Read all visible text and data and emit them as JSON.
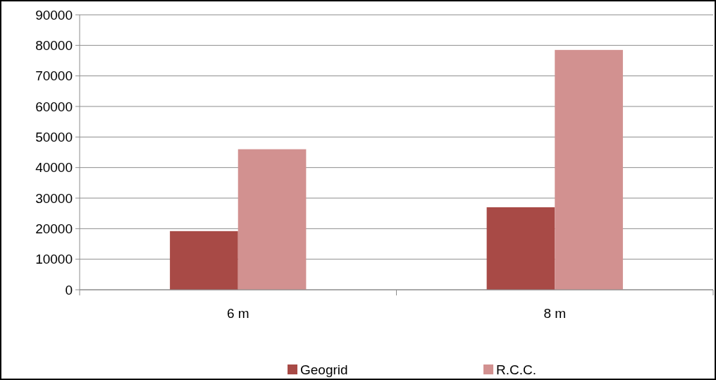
{
  "chart_data": {
    "type": "bar",
    "categories": [
      "6 m",
      "8 m"
    ],
    "series": [
      {
        "name": "Geogrid",
        "color": "#a84a46",
        "values": [
          19200,
          27000
        ]
      },
      {
        "name": "R.C.C.",
        "color": "#d29190",
        "values": [
          46000,
          78500
        ]
      }
    ],
    "ylim": [
      0,
      90000
    ],
    "yticks": [
      0,
      10000,
      20000,
      30000,
      40000,
      50000,
      60000,
      70000,
      80000,
      90000
    ],
    "grid": "y",
    "legend": "bottom"
  }
}
